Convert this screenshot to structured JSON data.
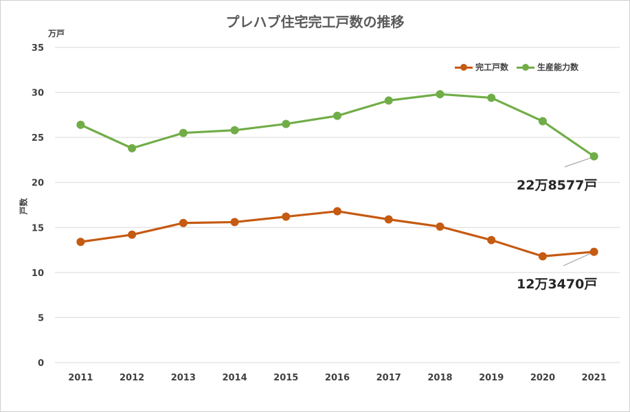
{
  "title": "プレハブ住宅完工戸数の推移",
  "unit_label": "万戸",
  "ylabel": "戸数",
  "annotations": {
    "capacity_2021": "22万8577戸",
    "completed_2021": "12万3470戸"
  },
  "colors": {
    "completed": "#c55a11",
    "capacity": "#70ad47",
    "grid": "#d9d9d9",
    "callout": "#a6a6a6"
  },
  "chart_data": {
    "type": "line",
    "title": "プレハブ住宅完工戸数の推移",
    "x": [
      "2011",
      "2012",
      "2013",
      "2014",
      "2015",
      "2016",
      "2017",
      "2018",
      "2019",
      "2020",
      "2021"
    ],
    "series": [
      {
        "name": "完工戸数",
        "values": [
          13.4,
          14.2,
          15.5,
          15.6,
          16.2,
          16.8,
          15.9,
          15.1,
          13.6,
          11.8,
          12.3
        ]
      },
      {
        "name": "生産能力数",
        "values": [
          26.4,
          23.8,
          25.5,
          25.8,
          26.5,
          27.4,
          29.1,
          29.8,
          29.4,
          26.8,
          22.9
        ]
      }
    ],
    "ylabel": "戸数",
    "ylim": [
      0,
      35
    ],
    "yticks": [
      "0",
      "5",
      "10",
      "15",
      "20",
      "25",
      "30",
      "35"
    ],
    "grid": true,
    "legend_position": "top-right"
  }
}
